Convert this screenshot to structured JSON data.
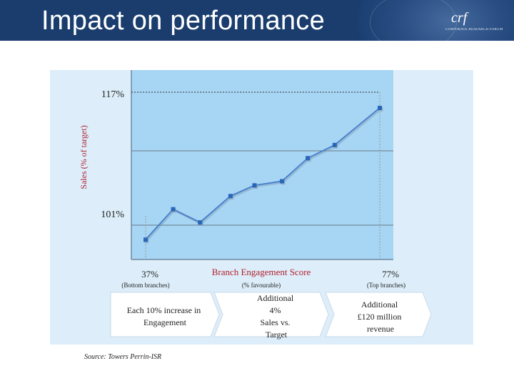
{
  "title": "Impact on performance",
  "logo": {
    "mark": "crf",
    "subtitle": "CORPORATE RESEARCH FORUM"
  },
  "chart_data": {
    "type": "line",
    "ylabel_bold": "Sales",
    "ylabel_rest": " (% of target)",
    "xlabel": "Branch Engagement Score",
    "xlabel_sub": "(% favourable)",
    "y_low_label": "101%",
    "y_high_label": "117%",
    "x_left_label": "37%",
    "x_left_sub": "(Bottom branches)",
    "x_right_label": "77%",
    "x_right_sub": "(Top branches)",
    "xlim": [
      37,
      77
    ],
    "ylim": [
      98.6,
      121.6
    ],
    "x": [
      37,
      41.7,
      46.3,
      51.5,
      55.6,
      60.3,
      64.7,
      69.3,
      77
    ],
    "y": [
      101,
      104.7,
      103.1,
      106.3,
      107.6,
      108.1,
      110.9,
      112.5,
      117
    ],
    "colors": {
      "line": "#4a7fc8",
      "marker": "#2a66b8",
      "plot_bg": "#a7d5f4",
      "panel_bg": "#ddeefa"
    }
  },
  "flow": {
    "step1": [
      "Each 10% increase in",
      "Engagement"
    ],
    "step2": [
      "Additional",
      "4%",
      "Sales vs.",
      "Target"
    ],
    "step3": [
      "Additional",
      "£120 million",
      "revenue"
    ]
  },
  "source": "Source: Towers Perrin-ISR"
}
